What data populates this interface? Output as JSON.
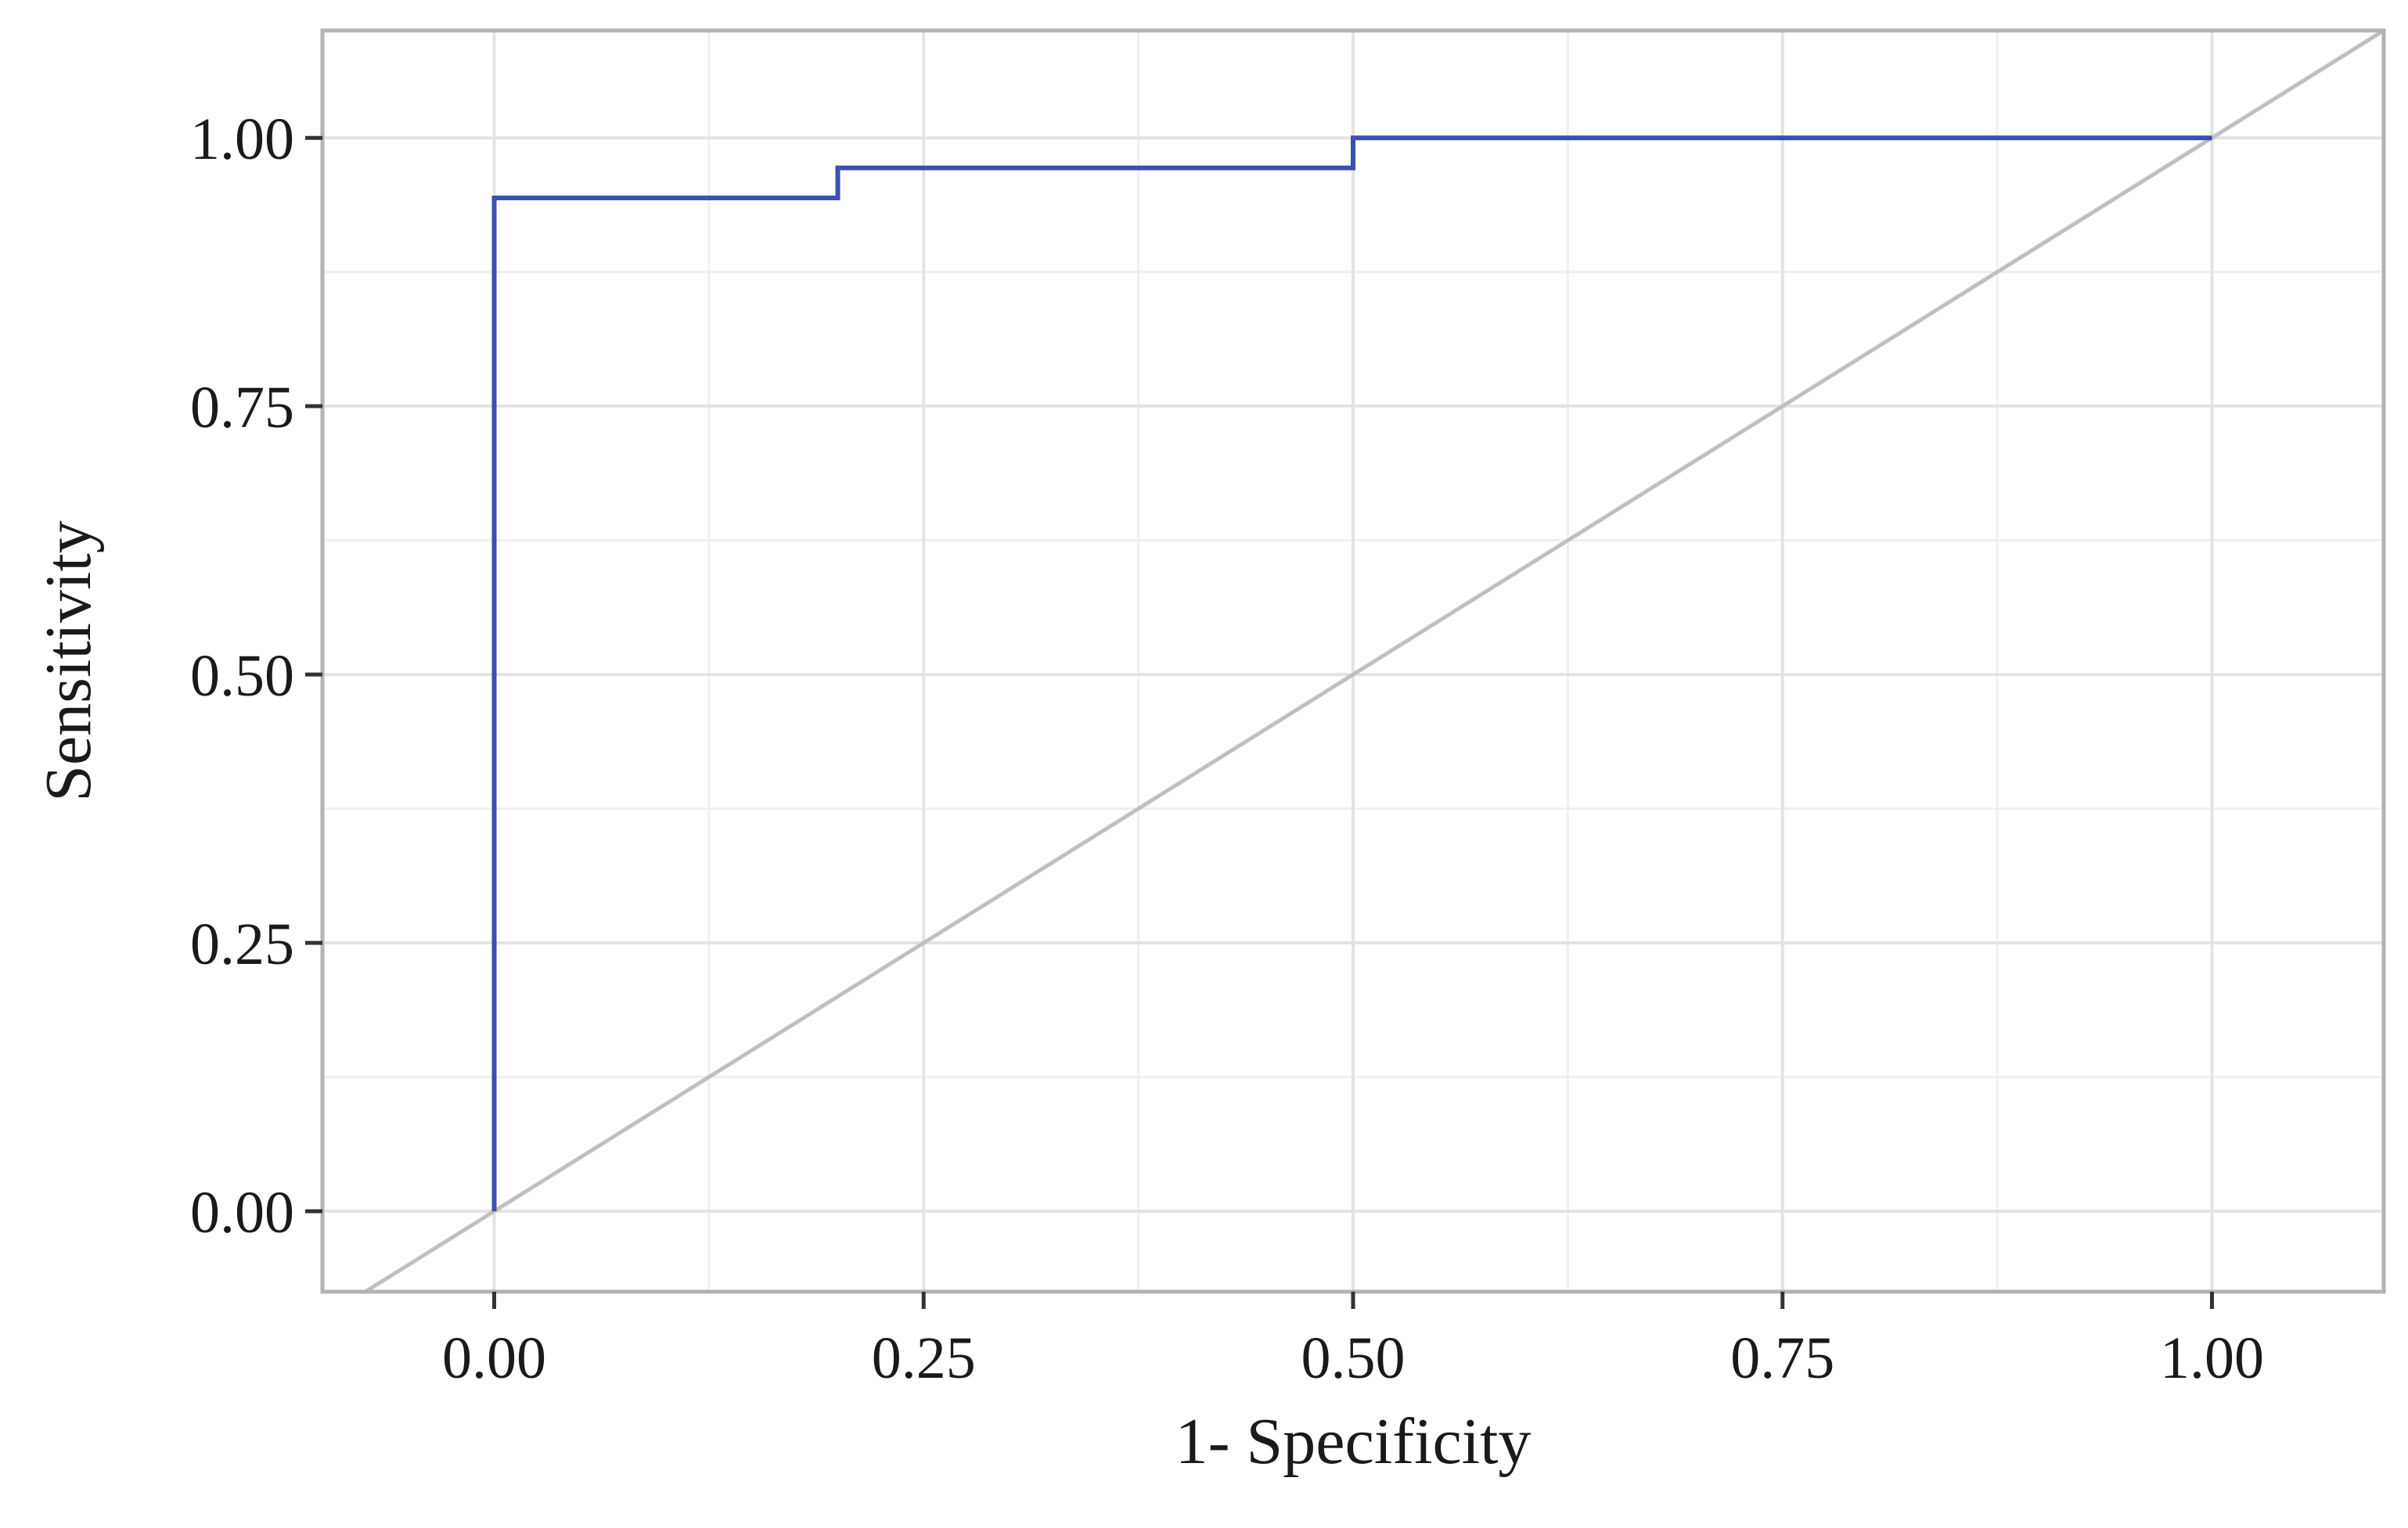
{
  "chart_data": {
    "type": "line",
    "title": "",
    "xlabel": "1- Specificity",
    "ylabel": "Sensitivity",
    "xlim": [
      -0.1,
      1.1
    ],
    "ylim": [
      -0.075,
      1.1
    ],
    "x_ticks": [
      0,
      0.25,
      0.5,
      0.75,
      1
    ],
    "x_tick_labels": [
      "0.00",
      "0.25",
      "0.50",
      "0.75",
      "1.00"
    ],
    "y_ticks": [
      0,
      0.25,
      0.5,
      0.75,
      1
    ],
    "y_tick_labels": [
      "0.00",
      "0.25",
      "0.50",
      "0.75",
      "1.00"
    ],
    "grid": true,
    "legend": "none",
    "series": [
      {
        "color": "#3b4fae",
        "step": true,
        "x": [
          0,
          0,
          0.2,
          0.2,
          0.5,
          0.5,
          1
        ],
        "y": [
          0,
          0.944,
          0.944,
          0.972,
          0.972,
          1,
          1
        ]
      }
    ],
    "reference_line": {
      "x": [
        -0.1,
        1.1
      ],
      "y": [
        -0.1,
        1.1
      ],
      "color": "#c0c0c0"
    }
  }
}
